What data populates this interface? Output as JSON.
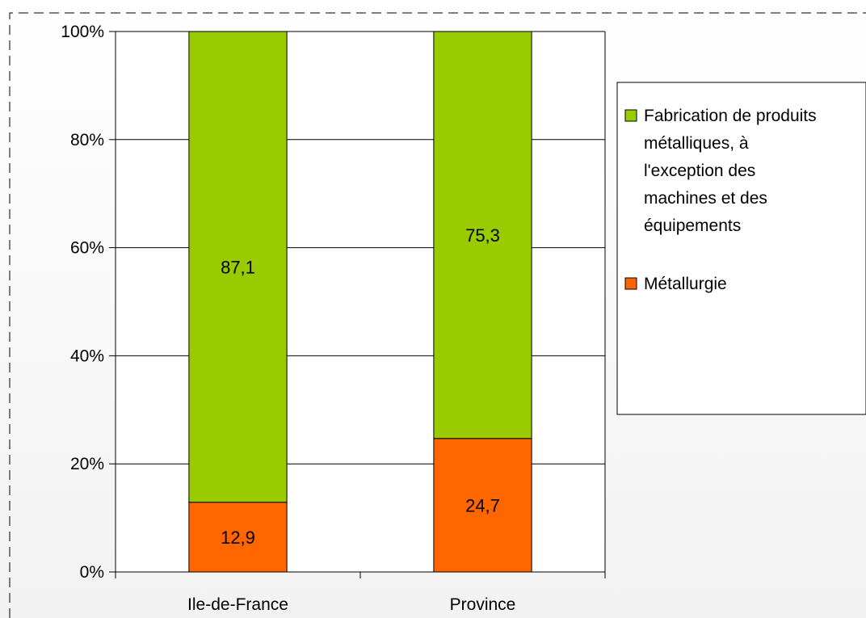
{
  "chart_data": {
    "type": "bar",
    "stacked": true,
    "percent": true,
    "categories": [
      "Ile-de-France",
      "Province"
    ],
    "series": [
      {
        "name": "Métallurgie",
        "values": [
          12.9,
          24.7
        ],
        "labels": [
          "12,9",
          "24,7"
        ],
        "color": "#ff6600"
      },
      {
        "name": "Fabrication de produits métalliques, à l'exception des machines et des équipements",
        "values": [
          87.1,
          75.3
        ],
        "labels": [
          "87,1",
          "75,3"
        ],
        "color": "#99cc00"
      }
    ],
    "legend_lines": [
      [
        "Fabrication de produits",
        "métalliques, à",
        "l'exception des",
        "machines et des",
        "équipements"
      ],
      [
        "Métallurgie"
      ]
    ],
    "yticks": [
      0,
      20,
      40,
      60,
      80,
      100
    ],
    "ytick_labels": [
      "0%",
      "20%",
      "40%",
      "60%",
      "80%",
      "100%"
    ],
    "ylim": [
      0,
      100
    ],
    "grid": true,
    "legend_position": "right",
    "title": "",
    "xlabel": "",
    "ylabel": ""
  }
}
